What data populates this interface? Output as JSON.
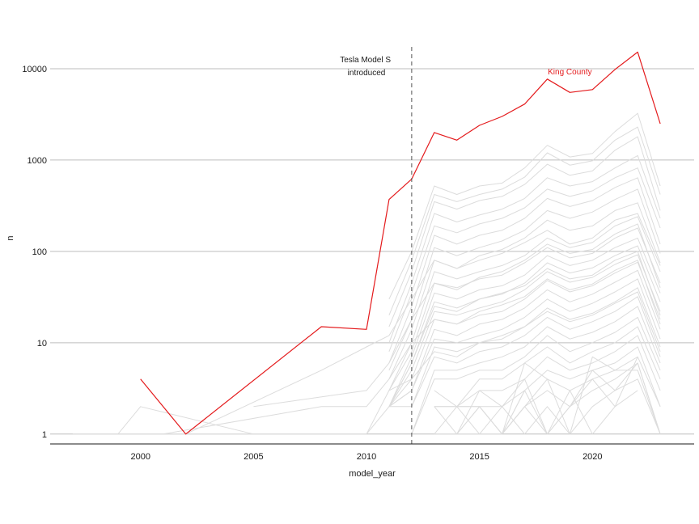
{
  "chart_data": {
    "type": "line",
    "title": "",
    "xlabel": "model_year",
    "ylabel": "n",
    "y_scale": "log10",
    "xlim": [
      1996,
      2024.5
    ],
    "ylim": [
      0.78,
      25000
    ],
    "x_ticks": [
      2000,
      2005,
      2010,
      2015,
      2020
    ],
    "x_tick_labels": [
      "2000",
      "2005",
      "2010",
      "2015",
      "2020"
    ],
    "y_ticks": [
      1,
      10,
      100,
      1000,
      10000
    ],
    "y_tick_labels": [
      "1",
      "10",
      "100",
      "1000",
      "10000"
    ],
    "grid": "horizontal-major",
    "colors": {
      "highlight": "#e41a1c",
      "background_series": "#dcdcdc",
      "grid": "#bebebe",
      "vline": "#555555"
    },
    "highlight_series": {
      "name": "King County",
      "x": [
        2000,
        2002,
        2008,
        2010,
        2011,
        2012,
        2013,
        2014,
        2015,
        2016,
        2017,
        2018,
        2019,
        2020,
        2021,
        2022,
        2023
      ],
      "values": [
        4,
        1,
        15,
        14,
        370,
        620,
        2000,
        1650,
        2400,
        3000,
        4100,
        7700,
        5500,
        5900,
        9800,
        15200,
        2500
      ]
    },
    "background_series": [
      {
        "x": [
          2011,
          2012,
          2013,
          2014,
          2015,
          2016,
          2017,
          2018,
          2019,
          2020,
          2021,
          2022,
          2023
        ],
        "values": [
          30,
          100,
          520,
          420,
          520,
          560,
          820,
          1450,
          1080,
          1180,
          2050,
          3250,
          520
        ]
      },
      {
        "x": [
          2011,
          2012,
          2013,
          2014,
          2015,
          2016,
          2017,
          2018,
          2019,
          2020,
          2021,
          2022,
          2023
        ],
        "values": [
          20,
          80,
          420,
          350,
          420,
          480,
          650,
          1200,
          880,
          980,
          1650,
          2300,
          420
        ]
      },
      {
        "x": [
          2011,
          2012,
          2013,
          2014,
          2015,
          2016,
          2017,
          2018,
          2019,
          2020,
          2021,
          2022,
          2023
        ],
        "values": [
          15,
          60,
          350,
          290,
          360,
          400,
          540,
          900,
          680,
          760,
          1280,
          1800,
          280
        ]
      },
      {
        "x": [
          2011,
          2012,
          2013,
          2014,
          2015,
          2016,
          2017,
          2018,
          2019,
          2020,
          2021,
          2022,
          2023
        ],
        "values": [
          10,
          45,
          260,
          210,
          250,
          290,
          380,
          640,
          520,
          580,
          820,
          1120,
          230
        ]
      },
      {
        "x": [
          2011,
          2012,
          2013,
          2014,
          2015,
          2016,
          2017,
          2018,
          2019,
          2020,
          2021,
          2022,
          2023
        ],
        "values": [
          8,
          35,
          190,
          160,
          200,
          230,
          300,
          480,
          400,
          460,
          640,
          820,
          180
        ]
      },
      {
        "x": [
          2011,
          2012,
          2013,
          2014,
          2015,
          2016,
          2017,
          2018,
          2019,
          2020,
          2021,
          2022,
          2023
        ],
        "values": [
          6,
          25,
          150,
          120,
          150,
          170,
          230,
          380,
          310,
          360,
          500,
          640,
          120
        ]
      },
      {
        "x": [
          2011,
          2012,
          2013,
          2014,
          2015,
          2016,
          2017,
          2018,
          2019,
          2020,
          2021,
          2022,
          2023
        ],
        "values": [
          5,
          18,
          110,
          90,
          110,
          130,
          170,
          280,
          230,
          270,
          370,
          480,
          95
        ]
      },
      {
        "x": [
          2011,
          2012,
          2013,
          2014,
          2015,
          2016,
          2017,
          2018,
          2019,
          2020,
          2021,
          2022,
          2023
        ],
        "values": [
          4,
          14,
          80,
          65,
          80,
          95,
          125,
          170,
          120,
          140,
          220,
          260,
          70
        ]
      },
      {
        "x": [
          2011,
          2012,
          2013,
          2014,
          2015,
          2016,
          2017,
          2018,
          2019,
          2020,
          2021,
          2022,
          2023
        ],
        "values": [
          3,
          10,
          60,
          50,
          60,
          70,
          90,
          140,
          110,
          125,
          190,
          240,
          60
        ]
      },
      {
        "x": [
          2011,
          2012,
          2013,
          2014,
          2015,
          2016,
          2017,
          2018,
          2019,
          2020,
          2021,
          2022,
          2023
        ],
        "values": [
          3,
          8,
          45,
          40,
          50,
          55,
          75,
          110,
          85,
          95,
          140,
          180,
          45
        ]
      },
      {
        "x": [
          2011,
          2012,
          2013,
          2014,
          2015,
          2016,
          2017,
          2018,
          2019,
          2020,
          2021,
          2022,
          2023
        ],
        "values": [
          2,
          7,
          35,
          30,
          38,
          42,
          55,
          90,
          70,
          80,
          110,
          140,
          35
        ]
      },
      {
        "x": [
          2011,
          2012,
          2013,
          2014,
          2015,
          2016,
          2017,
          2018,
          2019,
          2020,
          2021,
          2022,
          2023
        ],
        "values": [
          2,
          6,
          28,
          24,
          30,
          34,
          45,
          75,
          58,
          66,
          90,
          115,
          28
        ]
      },
      {
        "x": [
          2011,
          2012,
          2013,
          2014,
          2015,
          2016,
          2017,
          2018,
          2019,
          2020,
          2021,
          2022,
          2023
        ],
        "values": [
          2,
          5,
          22,
          20,
          24,
          28,
          38,
          60,
          46,
          52,
          72,
          92,
          22
        ]
      },
      {
        "x": [
          2011,
          2012,
          2013,
          2014,
          2015,
          2016,
          2017,
          2018,
          2019,
          2020,
          2021,
          2022,
          2023
        ],
        "values": [
          2,
          4,
          18,
          16,
          20,
          22,
          30,
          48,
          36,
          42,
          58,
          76,
          18
        ]
      },
      {
        "x": [
          2011,
          2012,
          2013,
          2014,
          2015,
          2016,
          2017,
          2018,
          2019,
          2020,
          2021,
          2022,
          2023
        ],
        "values": [
          2,
          3,
          14,
          12,
          16,
          18,
          24,
          38,
          28,
          34,
          46,
          62,
          14
        ]
      },
      {
        "x": [
          2011,
          2012,
          2013,
          2014,
          2015,
          2016,
          2017,
          2018,
          2019,
          2020,
          2021,
          2022,
          2023
        ],
        "values": [
          2,
          3,
          11,
          10,
          12,
          14,
          19,
          30,
          22,
          27,
          36,
          50,
          11
        ]
      },
      {
        "x": [
          2011,
          2012,
          2013,
          2014,
          2015,
          2016,
          2017,
          2018,
          2019,
          2020,
          2021,
          2022,
          2023
        ],
        "values": [
          2,
          2,
          9,
          8,
          10,
          11,
          15,
          24,
          18,
          21,
          28,
          40,
          9
        ]
      },
      {
        "x": [
          2012,
          2013,
          2014,
          2015,
          2016,
          2017,
          2018,
          2019,
          2020,
          2021,
          2022,
          2023
        ],
        "values": [
          2,
          7,
          6,
          8,
          9,
          12,
          19,
          14,
          17,
          22,
          32,
          7
        ]
      },
      {
        "x": [
          2012,
          2013,
          2014,
          2015,
          2016,
          2017,
          2018,
          2019,
          2020,
          2021,
          2022,
          2023
        ],
        "values": [
          1,
          5,
          5,
          6,
          7,
          9,
          15,
          11,
          13,
          17,
          25,
          6
        ]
      },
      {
        "x": [
          2012,
          2013,
          2014,
          2015,
          2016,
          2017,
          2018,
          2019,
          2020,
          2021,
          2022,
          2023
        ],
        "values": [
          1,
          4,
          4,
          5,
          5,
          7,
          12,
          8,
          10,
          13,
          19,
          5
        ]
      },
      {
        "x": [
          2013,
          2014,
          2015,
          2016,
          2017,
          2018,
          2019,
          2020,
          2021,
          2022,
          2023
        ],
        "values": [
          3,
          2,
          4,
          4,
          6,
          9,
          6,
          8,
          10,
          15,
          4
        ]
      },
      {
        "x": [
          2013,
          2014,
          2015,
          2016,
          2017,
          2018,
          2019,
          2020,
          2021,
          2022,
          2023
        ],
        "values": [
          2,
          2,
          3,
          3,
          4,
          7,
          5,
          6,
          8,
          12,
          3
        ]
      },
      {
        "x": [
          2013,
          2014,
          2015,
          2016,
          2017,
          2018,
          2019,
          2020,
          2021,
          2022,
          2023
        ],
        "values": [
          2,
          1,
          2,
          2,
          3,
          5,
          4,
          5,
          6,
          9,
          2
        ]
      },
      {
        "x": [
          2013,
          2014,
          2015,
          2016,
          2017,
          2018,
          2019,
          2020,
          2021,
          2022,
          2023
        ],
        "values": [
          1,
          1,
          2,
          1,
          2,
          4,
          3,
          4,
          5,
          7,
          2
        ]
      },
      {
        "x": [
          2013,
          2014,
          2015,
          2016,
          2017,
          2018,
          2019,
          2020,
          2021,
          2022,
          2023
        ],
        "values": [
          1,
          2,
          1,
          1,
          2,
          3,
          2,
          3,
          4,
          6,
          1
        ]
      },
      {
        "x": [
          2013,
          2014,
          2015,
          2016,
          2017,
          2018,
          2019,
          2020,
          2021,
          2022,
          2023
        ],
        "values": [
          1,
          1,
          1,
          2,
          1,
          2,
          1,
          2,
          3,
          4,
          1
        ]
      },
      {
        "x": [
          2014,
          2015,
          2016,
          2017,
          2018,
          2019,
          2020,
          2021,
          2022,
          2023
        ],
        "values": [
          2,
          2,
          1,
          6,
          4,
          1,
          7,
          5,
          5,
          1
        ]
      },
      {
        "x": [
          2014,
          2015,
          2016,
          2017,
          2018,
          2019,
          2020,
          2021,
          2022
        ],
        "values": [
          1,
          3,
          2,
          4,
          1,
          2,
          4,
          2,
          7
        ]
      },
      {
        "x": [
          2015,
          2016,
          2017,
          2018,
          2019,
          2020,
          2021,
          2022,
          2023
        ],
        "values": [
          1,
          1,
          3,
          1,
          2,
          5,
          3,
          6,
          1
        ]
      },
      {
        "x": [
          2016,
          2017,
          2018,
          2019,
          2020,
          2021,
          2022
        ],
        "values": [
          1,
          2,
          1,
          3,
          1,
          2,
          3
        ]
      },
      {
        "x": [
          2013,
          2014,
          2015,
          2016,
          2017
        ],
        "values": [
          2,
          2,
          2,
          1,
          3
        ]
      },
      {
        "x": [
          1999,
          2000,
          2005,
          2010,
          2011,
          2012,
          2013,
          2014,
          2015,
          2016,
          2017,
          2018,
          2019,
          2020,
          2021,
          2022,
          2023
        ],
        "values": [
          1,
          2,
          1,
          1,
          2,
          6,
          25,
          22,
          30,
          35,
          42,
          65,
          50,
          55,
          80,
          100,
          20
        ]
      },
      {
        "x": [
          1999,
          2001,
          2008,
          2010,
          2011,
          2012,
          2013,
          2014,
          2015,
          2016,
          2017,
          2018,
          2019,
          2020,
          2021,
          2022,
          2023
        ],
        "values": [
          1,
          1,
          2,
          2,
          4,
          10,
          18,
          16,
          22,
          26,
          32,
          50,
          38,
          44,
          62,
          80,
          16
        ]
      },
      {
        "x": [
          1997,
          2002,
          2008,
          2010,
          2011,
          2012,
          2013,
          2014,
          2015,
          2016,
          2017,
          2018,
          2019,
          2020,
          2021,
          2022,
          2023
        ],
        "values": [
          1,
          1,
          1,
          1,
          3,
          4,
          8,
          7,
          10,
          12,
          15,
          22,
          17,
          20,
          27,
          36,
          8
        ]
      },
      {
        "x": [
          2002,
          2008,
          2010,
          2011,
          2012,
          2013,
          2014,
          2015,
          2016,
          2017,
          2018,
          2019,
          2020,
          2021,
          2022,
          2023
        ],
        "values": [
          1,
          5,
          9,
          12,
          30,
          80,
          65,
          90,
          105,
          140,
          220,
          170,
          190,
          280,
          340,
          75
        ]
      },
      {
        "x": [
          2005,
          2010,
          2011,
          2012,
          2013,
          2014,
          2015,
          2016,
          2017,
          2018,
          2019,
          2020,
          2021,
          2022,
          2023
        ],
        "values": [
          2,
          3,
          6,
          18,
          45,
          38,
          52,
          60,
          80,
          120,
          95,
          105,
          155,
          200,
          40
        ]
      }
    ],
    "vline": {
      "x": 2012,
      "linetype": "dashed"
    },
    "annotations": [
      {
        "text_lines": [
          "Tesla Model S",
          "introduced"
        ],
        "x": 2010,
        "y": 14000
      },
      {
        "text": "King County",
        "x": 2019,
        "y": 12000,
        "color": "#e41a1c"
      }
    ]
  }
}
